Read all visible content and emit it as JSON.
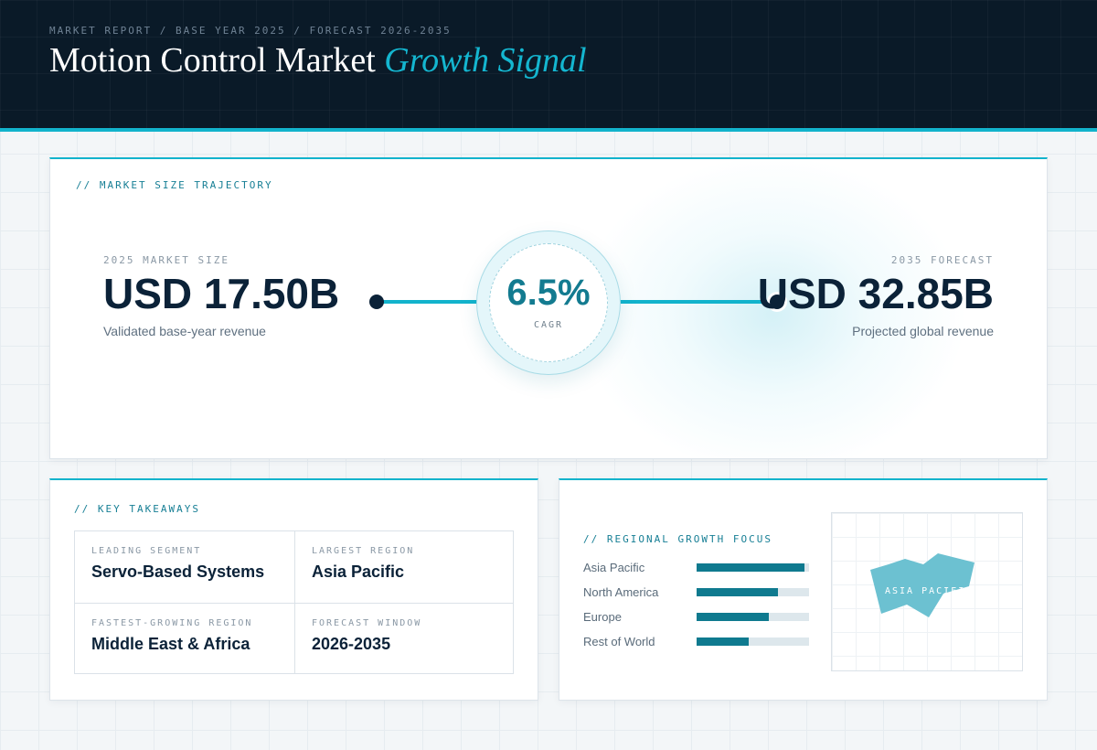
{
  "header": {
    "breadcrumb": "MARKET REPORT / BASE YEAR 2025 / FORECAST 2026-2035",
    "title_main": "Motion Control Market ",
    "title_accent": "Growth Signal"
  },
  "trajectory": {
    "label": "// MARKET SIZE TRAJECTORY",
    "base": {
      "caption": "2025 MARKET SIZE",
      "value": "USD 17.50B",
      "sub": "Validated base-year revenue"
    },
    "cagr": {
      "value": "6.5%",
      "label": "CAGR"
    },
    "forecast": {
      "caption": "2035 FORECAST",
      "value": "USD 32.85B",
      "sub": "Projected global revenue"
    }
  },
  "takeaways": {
    "label": "// KEY TAKEAWAYS",
    "items": [
      {
        "caption": "LEADING SEGMENT",
        "value": "Servo-Based Systems"
      },
      {
        "caption": "LARGEST REGION",
        "value": "Asia Pacific"
      },
      {
        "caption": "FASTEST-GROWING REGION",
        "value": "Middle East & Africa"
      },
      {
        "caption": "FORECAST WINDOW",
        "value": "2026-2035"
      }
    ]
  },
  "regional": {
    "label": "// REGIONAL GROWTH FOCUS",
    "regions": [
      {
        "name": "Asia Pacific",
        "level": 0.96
      },
      {
        "name": "North America",
        "level": 0.72
      },
      {
        "name": "Europe",
        "level": 0.64
      },
      {
        "name": "Rest of World",
        "level": 0.46
      }
    ],
    "map_label": "ASIA PACIFIC"
  },
  "colors": {
    "accent": "#12b3cc",
    "bar_fill": "#0f7a8f",
    "bar_track": "#dde7ec",
    "map_shape": "#6cc1d1",
    "header_bg": "#0a1a28"
  }
}
